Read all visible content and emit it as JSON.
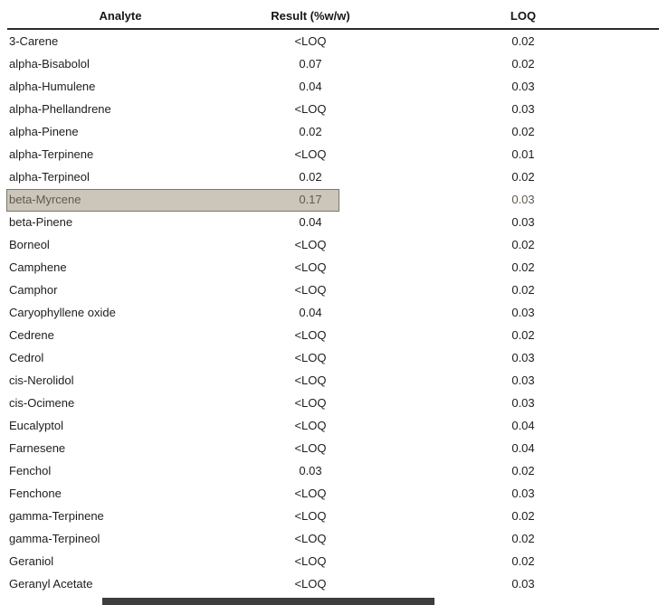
{
  "table": {
    "columns": [
      "Analyte",
      "Result (%w/w)",
      "LOQ"
    ],
    "rows": [
      {
        "analyte": "3-Carene",
        "result": "<LOQ",
        "loq": "0.02",
        "highlighted": false
      },
      {
        "analyte": "alpha-Bisabolol",
        "result": "0.07",
        "loq": "0.02",
        "highlighted": false
      },
      {
        "analyte": "alpha-Humulene",
        "result": "0.04",
        "loq": "0.03",
        "highlighted": false
      },
      {
        "analyte": "alpha-Phellandrene",
        "result": "<LOQ",
        "loq": "0.03",
        "highlighted": false
      },
      {
        "analyte": "alpha-Pinene",
        "result": "0.02",
        "loq": "0.02",
        "highlighted": false
      },
      {
        "analyte": "alpha-Terpinene",
        "result": "<LOQ",
        "loq": "0.01",
        "highlighted": false
      },
      {
        "analyte": "alpha-Terpineol",
        "result": "0.02",
        "loq": "0.02",
        "highlighted": false
      },
      {
        "analyte": "beta-Myrcene",
        "result": "0.17",
        "loq": "0.03",
        "highlighted": true
      },
      {
        "analyte": "beta-Pinene",
        "result": "0.04",
        "loq": "0.03",
        "highlighted": false
      },
      {
        "analyte": "Borneol",
        "result": "<LOQ",
        "loq": "0.02",
        "highlighted": false
      },
      {
        "analyte": "Camphene",
        "result": "<LOQ",
        "loq": "0.02",
        "highlighted": false
      },
      {
        "analyte": "Camphor",
        "result": "<LOQ",
        "loq": "0.02",
        "highlighted": false
      },
      {
        "analyte": "Caryophyllene oxide",
        "result": "0.04",
        "loq": "0.03",
        "highlighted": false
      },
      {
        "analyte": "Cedrene",
        "result": "<LOQ",
        "loq": "0.02",
        "highlighted": false
      },
      {
        "analyte": "Cedrol",
        "result": "<LOQ",
        "loq": "0.03",
        "highlighted": false
      },
      {
        "analyte": "cis-Nerolidol",
        "result": "<LOQ",
        "loq": "0.03",
        "highlighted": false
      },
      {
        "analyte": "cis-Ocimene",
        "result": "<LOQ",
        "loq": "0.03",
        "highlighted": false
      },
      {
        "analyte": "Eucalyptol",
        "result": "<LOQ",
        "loq": "0.04",
        "highlighted": false
      },
      {
        "analyte": "Farnesene",
        "result": "<LOQ",
        "loq": "0.04",
        "highlighted": false
      },
      {
        "analyte": "Fenchol",
        "result": "0.03",
        "loq": "0.02",
        "highlighted": false
      },
      {
        "analyte": "Fenchone",
        "result": "<LOQ",
        "loq": "0.03",
        "highlighted": false
      },
      {
        "analyte": "gamma-Terpinene",
        "result": "<LOQ",
        "loq": "0.02",
        "highlighted": false
      },
      {
        "analyte": "gamma-Terpineol",
        "result": "<LOQ",
        "loq": "0.02",
        "highlighted": false
      },
      {
        "analyte": "Geraniol",
        "result": "<LOQ",
        "loq": "0.02",
        "highlighted": false
      },
      {
        "analyte": "Geranyl Acetate",
        "result": "<LOQ",
        "loq": "0.03",
        "highlighted": false
      }
    ]
  },
  "highlight": {
    "background": "#ccc5ba",
    "border": "#7d766a",
    "text": "#5f5a50"
  },
  "bottom_bar": {
    "color": "#3d3d3d"
  }
}
